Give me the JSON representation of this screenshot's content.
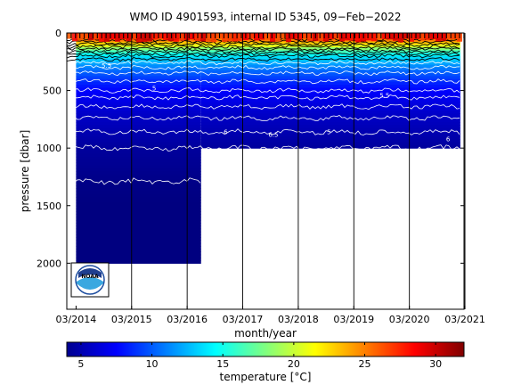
{
  "chart_data": [
    {
      "type": "heatmap",
      "title": "WMO ID 4901593, internal ID 5345, 09−Feb−2022",
      "xlabel": "month/year",
      "ylabel": "pressure [dbar]",
      "x_tick_labels": [
        "03/2014",
        "03/2015",
        "03/2016",
        "03/2017",
        "03/2018",
        "03/2019",
        "03/2020",
        "03/2021"
      ],
      "y_ticks": [
        0,
        500,
        1000,
        1500,
        2000
      ],
      "ylim": [
        2400,
        0
      ],
      "y_axis_inverted": true,
      "profile_depth_segments": [
        {
          "from": "03/2014",
          "to": "06/2016",
          "max_pressure_dbar": 2000
        },
        {
          "from": "06/2016",
          "to": "02/2021",
          "max_pressure_dbar": 1000
        }
      ],
      "vertical_markers": [
        "03/2015",
        "03/2016",
        "03/2017",
        "03/2018",
        "03/2019",
        "03/2020",
        "03/2021"
      ],
      "temperature_layers": [
        {
          "pressure_dbar": 0,
          "temperature_c": 28
        },
        {
          "pressure_dbar": 50,
          "temperature_c": 26
        },
        {
          "pressure_dbar": 100,
          "temperature_c": 22
        },
        {
          "pressure_dbar": 150,
          "temperature_c": 17
        },
        {
          "pressure_dbar": 200,
          "temperature_c": 14
        },
        {
          "pressure_dbar": 300,
          "temperature_c": 11
        },
        {
          "pressure_dbar": 400,
          "temperature_c": 9
        },
        {
          "pressure_dbar": 500,
          "temperature_c": 7.5
        },
        {
          "pressure_dbar": 700,
          "temperature_c": 6
        },
        {
          "pressure_dbar": 1000,
          "temperature_c": 4.8
        },
        {
          "pressure_dbar": 1300,
          "temperature_c": 4.2
        },
        {
          "pressure_dbar": 2000,
          "temperature_c": 3.5
        }
      ],
      "contour_labels": [
        "5.5",
        "5",
        "6",
        "6.5",
        "5",
        "5.5",
        "6"
      ],
      "colors": {
        "background": "#ffffff",
        "contour_white": "#ffffff",
        "contour_black": "#000000"
      },
      "colorbar": {
        "label": "temperature [°C]",
        "range": [
          4,
          32
        ],
        "ticks": [
          5,
          10,
          15,
          20,
          25,
          30
        ],
        "colormap": "jet"
      },
      "logo": "NOAA"
    }
  ]
}
